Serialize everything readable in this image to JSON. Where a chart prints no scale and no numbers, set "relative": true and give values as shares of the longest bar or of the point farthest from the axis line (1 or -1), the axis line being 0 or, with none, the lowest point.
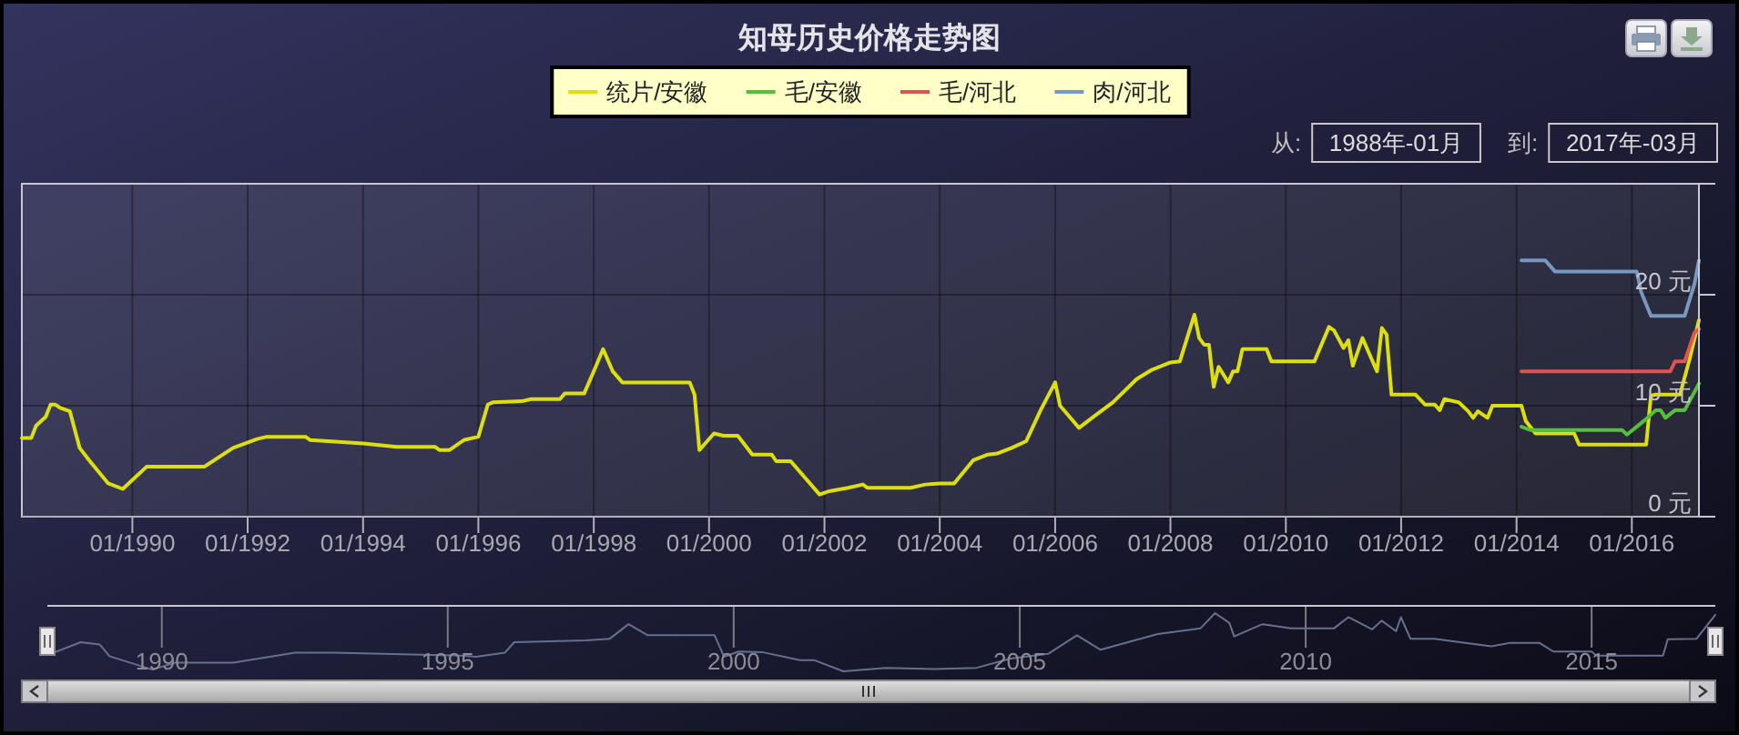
{
  "chart_data": [
    {
      "type": "line",
      "title": "知母历史价格走势图",
      "legend": "top",
      "grid": true,
      "xlim": [
        "1988-02",
        "2017-03"
      ],
      "xticks": [
        {
          "value": "1990-01",
          "label": "01/1990"
        },
        {
          "value": "1992-01",
          "label": "01/1992"
        },
        {
          "value": "1994-01",
          "label": "01/1994"
        },
        {
          "value": "1996-01",
          "label": "01/1996"
        },
        {
          "value": "1998-01",
          "label": "01/1998"
        },
        {
          "value": "2000-01",
          "label": "01/2000"
        },
        {
          "value": "2002-01",
          "label": "01/2002"
        },
        {
          "value": "2004-01",
          "label": "01/2004"
        },
        {
          "value": "2006-01",
          "label": "01/2006"
        },
        {
          "value": "2008-01",
          "label": "01/2008"
        },
        {
          "value": "2010-01",
          "label": "01/2010"
        },
        {
          "value": "2012-01",
          "label": "01/2012"
        },
        {
          "value": "2014-01",
          "label": "01/2014"
        },
        {
          "value": "2016-01",
          "label": "01/2016"
        }
      ],
      "ylim": [
        0,
        30
      ],
      "yticks": [
        {
          "value": 0,
          "label": "0 元"
        },
        {
          "value": 10,
          "label": "10 元"
        },
        {
          "value": 20,
          "label": "20 元"
        }
      ],
      "annotations": [
        "从:",
        "1988年-01月",
        "到:",
        "2017年-03月"
      ],
      "series": [
        {
          "name": "统片/安徽",
          "color": "#dddf0d",
          "x": [
            "1988-02",
            "1988-04",
            "1988-05",
            "1988-07",
            "1988-08",
            "1988-09",
            "1988-10",
            "1988-12",
            "1989-02",
            "1989-04",
            "1989-08",
            "1989-11",
            "1990-04",
            "1991-04",
            "1991-10",
            "1992-03",
            "1992-05",
            "1993-01",
            "1993-02",
            "1994-01",
            "1994-08",
            "1995-04",
            "1995-05",
            "1995-07",
            "1995-10",
            "1996-01",
            "1996-03",
            "1996-04",
            "1996-10",
            "1996-12",
            "1997-06",
            "1997-07",
            "1997-11",
            "1998-01",
            "1998-03",
            "1998-05",
            "1998-07",
            "1999-09",
            "1999-10",
            "1999-11",
            "2000-02",
            "2000-04",
            "2000-07",
            "2000-10",
            "2001-02",
            "2001-03",
            "2001-06",
            "2001-12",
            "2002-02",
            "2002-06",
            "2002-09",
            "2002-10",
            "2003-07",
            "2003-10",
            "2004-01",
            "2004-04",
            "2004-08",
            "2004-11",
            "2005-01",
            "2005-04",
            "2005-07",
            "2005-10",
            "2006-01",
            "2006-02",
            "2006-06",
            "2006-09",
            "2007-01",
            "2007-06",
            "2007-09",
            "2008-01",
            "2008-03",
            "2008-06",
            "2008-07",
            "2008-08",
            "2008-09",
            "2008-10",
            "2008-11",
            "2009-01",
            "2009-02",
            "2009-03",
            "2009-04",
            "2009-09",
            "2009-10",
            "2010-07",
            "2010-10",
            "2010-11",
            "2011-01",
            "2011-02",
            "2011-03",
            "2011-05",
            "2011-08",
            "2011-09",
            "2011-10",
            "2011-11",
            "2012-04",
            "2012-06",
            "2012-08",
            "2012-09",
            "2012-10",
            "2013-01",
            "2013-03",
            "2013-04",
            "2013-05",
            "2013-07",
            "2013-08",
            "2014-02",
            "2014-03",
            "2014-05",
            "2015-01",
            "2015-02",
            "2016-04",
            "2016-05",
            "2016-06",
            "2016-11",
            "2017-01",
            "2017-03"
          ],
          "values": [
            7.1,
            7.1,
            8.2,
            9.0,
            10.1,
            10.1,
            9.8,
            9.5,
            6.2,
            5.1,
            3.0,
            2.5,
            4.5,
            4.5,
            6.2,
            7.0,
            7.2,
            7.2,
            6.9,
            6.6,
            6.3,
            6.3,
            6.0,
            6.0,
            6.9,
            7.2,
            10.1,
            10.3,
            10.4,
            10.6,
            10.6,
            11.1,
            11.1,
            13.1,
            15.1,
            13.1,
            12.1,
            12.1,
            11.0,
            6.0,
            7.5,
            7.3,
            7.3,
            5.6,
            5.6,
            5.0,
            5.0,
            2.0,
            2.3,
            2.6,
            2.9,
            2.6,
            2.6,
            2.9,
            3.0,
            3.0,
            5.1,
            5.6,
            5.7,
            6.2,
            6.8,
            9.6,
            12.1,
            10.0,
            8.0,
            9.0,
            10.3,
            12.4,
            13.2,
            13.9,
            14.0,
            18.2,
            16.1,
            15.5,
            15.5,
            11.7,
            13.5,
            12.1,
            13.1,
            13.1,
            15.1,
            15.1,
            14.0,
            14.0,
            17.1,
            16.8,
            15.2,
            15.9,
            13.6,
            16.1,
            13.1,
            17.0,
            16.4,
            11.0,
            11.0,
            10.1,
            10.1,
            9.6,
            10.6,
            10.3,
            9.5,
            8.9,
            9.5,
            8.9,
            10.0,
            10.0,
            8.6,
            7.5,
            7.5,
            6.5,
            6.5,
            10.9,
            11.0,
            11.0,
            14.2,
            17.7
          ]
        },
        {
          "name": "毛/安徽",
          "color": "#55bf3b",
          "x": [
            "2014-02",
            "2014-04",
            "2015-11",
            "2015-12",
            "2016-02",
            "2016-04",
            "2016-06",
            "2016-07",
            "2016-08",
            "2016-10",
            "2016-12",
            "2017-03"
          ],
          "values": [
            8.1,
            7.8,
            7.8,
            7.4,
            8.1,
            8.8,
            9.6,
            9.6,
            8.9,
            9.6,
            9.6,
            12.0
          ]
        },
        {
          "name": "毛/河北",
          "color": "#df5353",
          "x": [
            "2014-02",
            "2016-09",
            "2016-10",
            "2016-12",
            "2017-02",
            "2017-03"
          ],
          "values": [
            13.1,
            13.1,
            14.0,
            14.0,
            16.6,
            16.9
          ]
        },
        {
          "name": "肉/河北",
          "color": "#7798bf",
          "x": [
            "2014-02",
            "2014-07",
            "2014-09",
            "2016-02",
            "2016-03",
            "2016-05",
            "2016-12",
            "2017-02",
            "2017-03"
          ],
          "values": [
            23.1,
            23.1,
            22.1,
            22.1,
            20.2,
            18.1,
            18.1,
            21.0,
            23.1
          ]
        }
      ]
    },
    {
      "type": "line",
      "relative": true,
      "grid": "x",
      "xlim": [
        "1988-01",
        "2017-03"
      ],
      "xticks": [
        {
          "value": "1990-01",
          "label": "1990"
        },
        {
          "value": "1995-01",
          "label": "1995"
        },
        {
          "value": "2000-01",
          "label": "2000"
        },
        {
          "value": "2005-01",
          "label": "2005"
        },
        {
          "value": "2010-01",
          "label": "2010"
        },
        {
          "value": "2015-01",
          "label": "2015"
        }
      ],
      "series": [
        {
          "color": "#66708e",
          "x": [
            "1988-02",
            "1988-08",
            "1988-12",
            "1989-02",
            "1989-11",
            "1990-04",
            "1991-04",
            "1992-05",
            "1993-01",
            "1995-04",
            "1995-07",
            "1996-01",
            "1996-03",
            "1997-06",
            "1997-11",
            "1998-03",
            "1998-07",
            "1999-09",
            "1999-11",
            "2000-02",
            "2000-07",
            "2001-03",
            "2001-06",
            "2001-12",
            "2002-09",
            "2003-07",
            "2004-04",
            "2004-11",
            "2005-07",
            "2006-01",
            "2006-06",
            "2007-06",
            "2008-03",
            "2008-06",
            "2008-09",
            "2008-10",
            "2009-04",
            "2009-10",
            "2010-07",
            "2010-10",
            "2011-03",
            "2011-05",
            "2011-08",
            "2011-09",
            "2011-11",
            "2012-04",
            "2013-04",
            "2013-08",
            "2014-02",
            "2014-05",
            "2015-01",
            "2015-02",
            "2016-04",
            "2016-05",
            "2016-11",
            "2017-03"
          ],
          "values": [
            0.31,
            0.5,
            0.46,
            0.26,
            0.03,
            0.15,
            0.15,
            0.32,
            0.32,
            0.27,
            0.25,
            0.32,
            0.5,
            0.53,
            0.56,
            0.81,
            0.62,
            0.62,
            0.25,
            0.34,
            0.33,
            0.19,
            0.19,
            0,
            0.06,
            0.04,
            0.06,
            0.22,
            0.3,
            0.62,
            0.37,
            0.64,
            0.74,
            1,
            0.83,
            0.6,
            0.81,
            0.74,
            0.74,
            0.93,
            0.72,
            0.87,
            0.69,
            0.93,
            0.56,
            0.56,
            0.43,
            0.49,
            0.49,
            0.34,
            0.34,
            0.27,
            0.27,
            0.55,
            0.56,
            0.97
          ]
        }
      ]
    }
  ]
}
